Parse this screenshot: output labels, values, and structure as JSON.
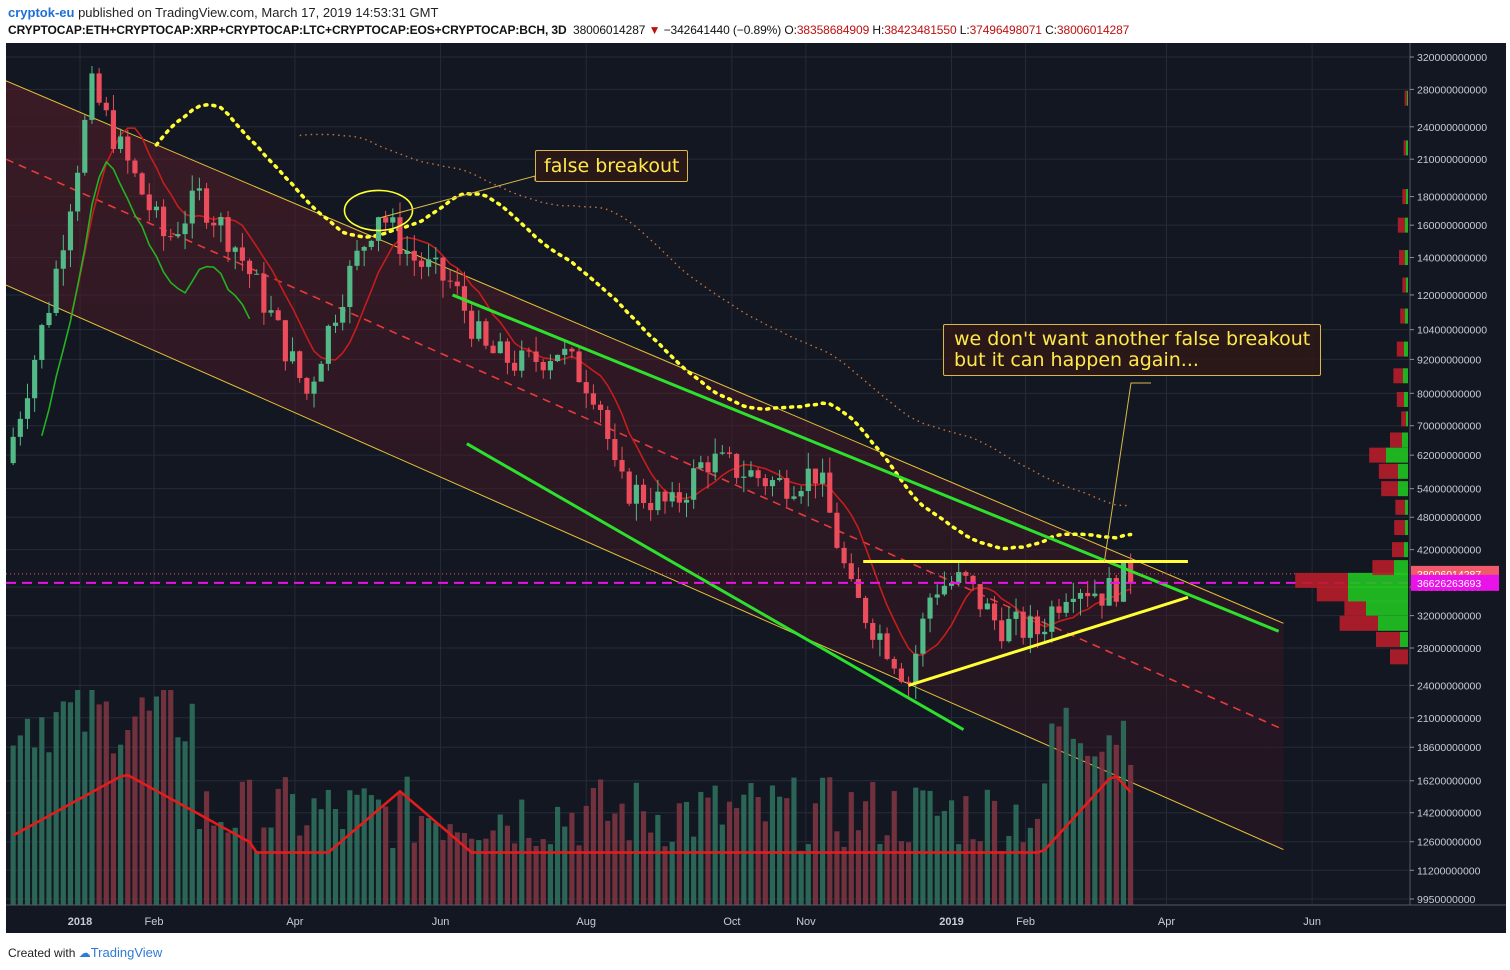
{
  "header": {
    "author": "cryptok-eu",
    "published": " published on TradingView.com, March 17, 2019 14:53:31 GMT",
    "symbol": "CRYPTOCAP:ETH+CRYPTOCAP:XRP+CRYPTOCAP:LTC+CRYPTOCAP:EOS+CRYPTOCAP:BCH, 3D",
    "last": "38006014287",
    "change": "−342641440 (−0.89%)",
    "o_label": "O:",
    "o_value": "38358684909",
    "h_label": "H:",
    "h_value": "38423481550",
    "l_label": "L:",
    "l_value": "37496498071",
    "c_label": "C:",
    "c_value": "38006014287"
  },
  "footer": {
    "created_with": "Created with",
    "brand": "TradingView"
  },
  "colors": {
    "background": "#131722",
    "up_candle": "#53b987",
    "down_candle": "#eb4d5c",
    "channel": "#e8c23a",
    "green_lines": "#2ee02e",
    "yellow_lines": "#ffff33",
    "callout_text": "#ffe94a",
    "current_price_label": "#f05a6a",
    "poc_label": "#e912e9"
  },
  "chart_data": {
    "type": "candlestick",
    "timeframe": "3D",
    "x_tick_labels": [
      "2018",
      "Feb",
      "Apr",
      "Jun",
      "Aug",
      "Oct",
      "Nov",
      "2019",
      "Feb",
      "Apr",
      "Jun"
    ],
    "x_tick_dates": [
      "2018-01-01",
      "2018-02-01",
      "2018-04-01",
      "2018-06-01",
      "2018-08-01",
      "2018-10-01",
      "2018-11-01",
      "2019-01-01",
      "2019-02-01",
      "2019-04-01",
      "2019-06-01"
    ],
    "y_scale": "log",
    "y_tick_labels": [
      "320000000000",
      "280000000000",
      "240000000000",
      "210000000000",
      "180000000000",
      "160000000000",
      "140000000000",
      "120000000000",
      "104000000000",
      "92000000000",
      "80000000000",
      "70000000000",
      "62000000000",
      "54000000000",
      "48000000000",
      "42000000000",
      "36000000000",
      "32000000000",
      "28000000000",
      "24000000000",
      "21000000000",
      "18600000000",
      "16200000000",
      "14200000000",
      "12600000000",
      "11200000000",
      "9950000000"
    ],
    "current_price": "38006014287",
    "poc_price": "36626263693",
    "close_series": [
      {
        "date": "2017-12-01",
        "close": 60000000000
      },
      {
        "date": "2017-12-20",
        "close": 120000000000
      },
      {
        "date": "2018-01-06",
        "close": 280000000000
      },
      {
        "date": "2018-01-20",
        "close": 210000000000
      },
      {
        "date": "2018-02-06",
        "close": 150000000000
      },
      {
        "date": "2018-02-20",
        "close": 180000000000
      },
      {
        "date": "2018-03-06",
        "close": 150000000000
      },
      {
        "date": "2018-03-20",
        "close": 115000000000
      },
      {
        "date": "2018-04-06",
        "close": 80000000000
      },
      {
        "date": "2018-04-20",
        "close": 120000000000
      },
      {
        "date": "2018-05-06",
        "close": 170000000000
      },
      {
        "date": "2018-05-20",
        "close": 140000000000
      },
      {
        "date": "2018-06-06",
        "close": 125000000000
      },
      {
        "date": "2018-06-20",
        "close": 95000000000
      },
      {
        "date": "2018-07-06",
        "close": 90000000000
      },
      {
        "date": "2018-07-20",
        "close": 96000000000
      },
      {
        "date": "2018-08-06",
        "close": 80000000000
      },
      {
        "date": "2018-08-14",
        "close": 55000000000
      },
      {
        "date": "2018-09-06",
        "close": 50000000000
      },
      {
        "date": "2018-09-20",
        "close": 61000000000
      },
      {
        "date": "2018-10-06",
        "close": 58000000000
      },
      {
        "date": "2018-10-20",
        "close": 55000000000
      },
      {
        "date": "2018-11-06",
        "close": 58000000000
      },
      {
        "date": "2018-11-20",
        "close": 35000000000
      },
      {
        "date": "2018-12-06",
        "close": 28000000000
      },
      {
        "date": "2018-12-14",
        "close": 24500000000
      },
      {
        "date": "2018-12-24",
        "close": 36000000000
      },
      {
        "date": "2019-01-06",
        "close": 37000000000
      },
      {
        "date": "2019-01-20",
        "close": 31000000000
      },
      {
        "date": "2019-02-06",
        "close": 30000000000
      },
      {
        "date": "2019-02-20",
        "close": 37000000000
      },
      {
        "date": "2019-03-06",
        "close": 35000000000
      },
      {
        "date": "2019-03-17",
        "close": 38006014287
      }
    ],
    "annotations": [
      {
        "text": "false breakout"
      },
      {
        "text": "we don't want another false breakout",
        "text2": "but it can happen again..."
      }
    ]
  }
}
